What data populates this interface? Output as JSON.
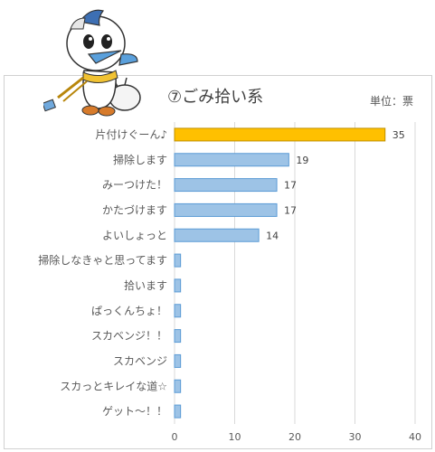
{
  "title": "⑦ごみ拾い系",
  "unit_label": "単位：票",
  "colors": {
    "highlight": "#FFC000",
    "bar": "#9DC3E6",
    "bar_edge": "#5B9BD5",
    "highlight_edge": "#BF9000"
  },
  "mascot_icon": "bird-mascot-with-trash-bag",
  "chart_data": {
    "type": "bar",
    "orientation": "horizontal",
    "categories": [
      "片付けぐーん♪",
      "掃除します",
      "みーつけた！",
      "かたづけます",
      "よいしょっと",
      "掃除しなきゃと思ってます",
      "拾います",
      "ぱっくんちょ！",
      "スカベンジ！！",
      "スカベンジ",
      "スカっとキレイな道☆",
      "ゲット〜！！"
    ],
    "values": [
      35,
      19,
      17,
      17,
      14,
      1,
      1,
      1,
      1,
      1,
      1,
      1
    ],
    "data_labels": [
      "35",
      "19",
      "17",
      "17",
      "14",
      "",
      "",
      "",
      "",
      "",
      "",
      ""
    ],
    "xlim": [
      0,
      40
    ],
    "xticks": [
      "0",
      "10",
      "20",
      "30",
      "40"
    ],
    "grid": true,
    "highlight_index": 0
  }
}
